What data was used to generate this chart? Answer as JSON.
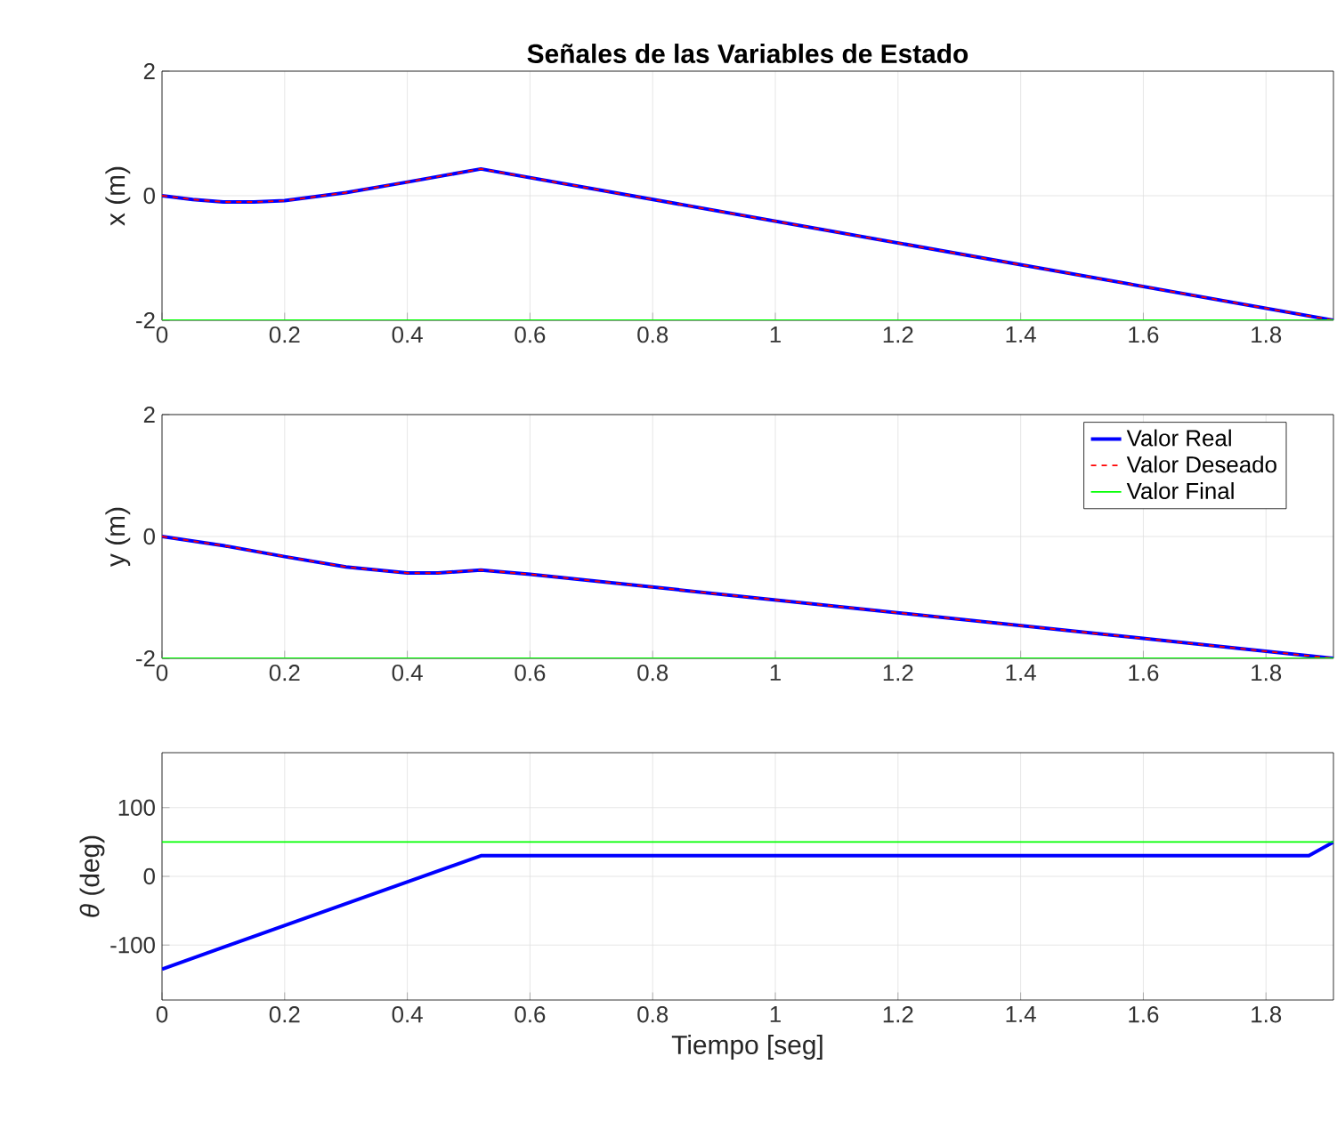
{
  "chart_data": [
    {
      "type": "line",
      "title": "Señales de las Variables de Estado",
      "ylabel": "x (m)",
      "xlim": [
        0,
        1.91
      ],
      "xticks": [
        0,
        0.2,
        0.4,
        0.6,
        0.8,
        1,
        1.2,
        1.4,
        1.6,
        1.8
      ],
      "ylim": [
        -2,
        2
      ],
      "yticks": [
        -2,
        0,
        2
      ],
      "grid": true,
      "legend": false,
      "series": [
        {
          "color": "#0000ff",
          "line_style": "solid",
          "x": [
            0,
            0.05,
            0.1,
            0.15,
            0.2,
            0.3,
            0.4,
            0.52,
            1.91
          ],
          "values": [
            0,
            -0.06,
            -0.1,
            -0.1,
            -0.08,
            0.05,
            0.22,
            0.43,
            -2
          ]
        },
        {
          "color": "#ff0000",
          "line_style": "dashed",
          "x": [
            0,
            0.05,
            0.1,
            0.15,
            0.2,
            0.3,
            0.4,
            0.52,
            1.91
          ],
          "values": [
            0,
            -0.06,
            -0.1,
            -0.1,
            -0.08,
            0.05,
            0.22,
            0.43,
            -2
          ]
        },
        {
          "color": "#00ff00",
          "line_style": "solid",
          "x": [
            0,
            1.91
          ],
          "values": [
            -2,
            -2
          ]
        }
      ]
    },
    {
      "type": "line",
      "ylabel": "y (m)",
      "xlim": [
        0,
        1.91
      ],
      "xticks": [
        0,
        0.2,
        0.4,
        0.6,
        0.8,
        1,
        1.2,
        1.4,
        1.6,
        1.8
      ],
      "ylim": [
        -2,
        2
      ],
      "yticks": [
        -2,
        0,
        2
      ],
      "grid": true,
      "legend": "top right",
      "series": [
        {
          "name": "Valor Real",
          "color": "#0000ff",
          "line_style": "solid",
          "x": [
            0,
            0.1,
            0.2,
            0.3,
            0.4,
            0.45,
            0.52,
            0.6,
            1.91
          ],
          "values": [
            0,
            -0.15,
            -0.33,
            -0.5,
            -0.6,
            -0.6,
            -0.55,
            -0.62,
            -2
          ]
        },
        {
          "name": "Valor Deseado",
          "color": "#ff0000",
          "line_style": "dashed",
          "x": [
            0,
            0.1,
            0.2,
            0.3,
            0.4,
            0.45,
            0.52,
            0.6,
            1.91
          ],
          "values": [
            0,
            -0.15,
            -0.33,
            -0.5,
            -0.6,
            -0.6,
            -0.55,
            -0.62,
            -2
          ]
        },
        {
          "name": "Valor Final",
          "color": "#00ff00",
          "line_style": "solid",
          "x": [
            0,
            1.91
          ],
          "values": [
            -2,
            -2
          ]
        }
      ]
    },
    {
      "type": "line",
      "ylabel": "*θ* (deg)",
      "xlabel": "Tiempo [seg]",
      "xlim": [
        0,
        1.91
      ],
      "xticks": [
        0,
        0.2,
        0.4,
        0.6,
        0.8,
        1,
        1.2,
        1.4,
        1.6,
        1.8
      ],
      "ylim": [
        -180,
        180
      ],
      "yticks": [
        -100,
        0,
        100
      ],
      "grid": true,
      "legend": false,
      "series": [
        {
          "color": "#0000ff",
          "line_style": "solid",
          "x": [
            0,
            0.52,
            1.87,
            1.91
          ],
          "values": [
            -135,
            30,
            30,
            50
          ]
        },
        {
          "color": "#00ff00",
          "line_style": "solid",
          "x": [
            0,
            1.91
          ],
          "values": [
            50,
            50
          ]
        }
      ]
    }
  ]
}
